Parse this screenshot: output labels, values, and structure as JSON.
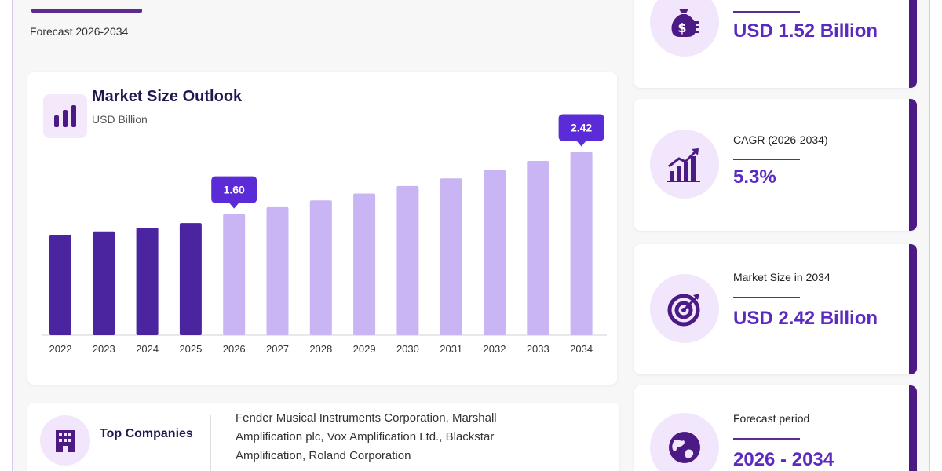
{
  "header": {
    "subtitle": "Forecast 2026-2034"
  },
  "chart_data": {
    "type": "bar",
    "title": "Market Size Outlook",
    "unit": "USD Billion",
    "categories": [
      "2022",
      "2023",
      "2024",
      "2025",
      "2026",
      "2027",
      "2028",
      "2029",
      "2030",
      "2031",
      "2032",
      "2033",
      "2034"
    ],
    "values": [
      1.32,
      1.37,
      1.42,
      1.48,
      1.6,
      1.69,
      1.78,
      1.87,
      1.97,
      2.07,
      2.18,
      2.3,
      2.42
    ],
    "historical_count": 4,
    "callouts": [
      {
        "category": "2026",
        "label": "1.60"
      },
      {
        "category": "2034",
        "label": "2.42"
      }
    ],
    "colors": {
      "historical": "#4b25a0",
      "forecast": "#c9b5f4",
      "callout": "#5b2bd8"
    }
  },
  "stats": [
    {
      "label": "",
      "value": "USD 1.52 Billion",
      "icon": "money-bag-icon"
    },
    {
      "label": "CAGR (2026-2034)",
      "value": "5.3%",
      "icon": "growth-chart-icon"
    },
    {
      "label": "Market Size in 2034",
      "value": "USD 2.42 Billion",
      "icon": "target-icon"
    },
    {
      "label": "Forecast period",
      "value": "2026 - 2034",
      "icon": "globe-icon"
    }
  ],
  "companies": {
    "label": "Top Companies",
    "text": "Fender Musical Instruments Corporation, Marshall Amplification plc, Vox Amplification Ltd., Blackstar Amplification, Roland Corporation",
    "icon": "building-icon"
  },
  "colors": {
    "accent": "#5b2bc0",
    "dark_accent": "#4b1a85",
    "icon_bg": "#f1e6fb"
  }
}
